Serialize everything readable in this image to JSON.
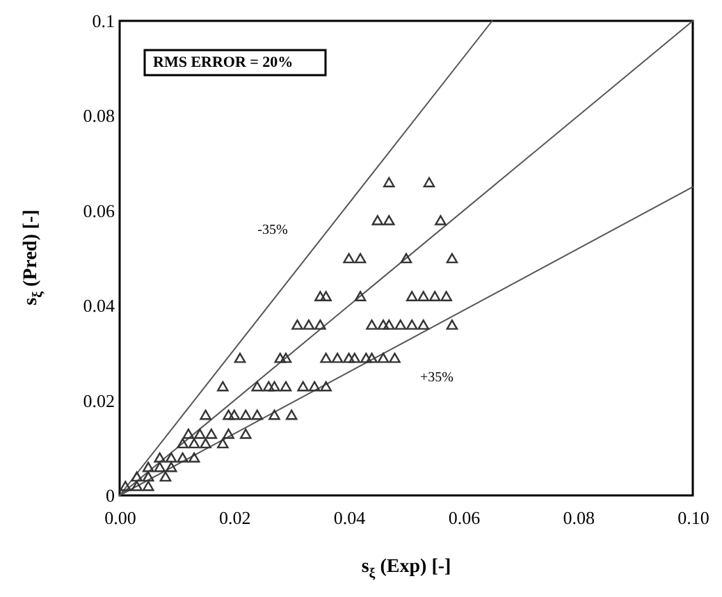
{
  "chart_data": {
    "type": "scatter",
    "xlabel": "s$_{ξ}$ (Exp) [-]",
    "ylabel": "s$_{ξ}$ (Pred) [-]",
    "annotations": [
      "RMS ERROR = 20%",
      "-35%",
      "+35%"
    ],
    "xlim": [
      0,
      0.1
    ],
    "ylim": [
      0,
      0.1
    ],
    "xticks": [
      {
        "value": 0,
        "label": "0.00"
      },
      {
        "value": 0.02,
        "label": "0.02"
      },
      {
        "value": 0.04,
        "label": "0.04"
      },
      {
        "value": 0.06,
        "label": "0.06"
      },
      {
        "value": 0.08,
        "label": "0.08"
      },
      {
        "value": 0.1,
        "label": "0.10"
      }
    ],
    "yticks": [
      0,
      0.02,
      0.04,
      0.06,
      0.08,
      0.1
    ],
    "grid": false,
    "series": [
      {
        "type": "line",
        "color": "#555555",
        "x": [
          0,
          0.1
        ],
        "values": [
          0,
          0.1
        ]
      },
      {
        "type": "line",
        "color": "#555555",
        "x": [
          0,
          0.065
        ],
        "values": [
          0,
          0.1
        ]
      },
      {
        "type": "line",
        "color": "#555555",
        "x": [
          0,
          0.1
        ],
        "values": [
          0,
          0.065
        ]
      },
      {
        "color": "#333333",
        "marker": "triangle",
        "x": [
          0.047,
          0.054,
          0.045,
          0.047,
          0.056,
          0.04,
          0.042,
          0.05,
          0.058,
          0.035,
          0.036,
          0.042,
          0.051,
          0.053,
          0.055,
          0.057,
          0.031,
          0.033,
          0.035,
          0.044,
          0.046,
          0.047,
          0.049,
          0.051,
          0.053,
          0.058,
          0.021,
          0.028,
          0.029,
          0.036,
          0.038,
          0.04,
          0.041,
          0.043,
          0.044,
          0.046,
          0.048,
          0.018,
          0.024,
          0.026,
          0.027,
          0.029,
          0.032,
          0.034,
          0.036,
          0.015,
          0.019,
          0.02,
          0.022,
          0.024,
          0.027,
          0.03,
          0.012,
          0.014,
          0.016,
          0.019,
          0.022,
          0.011,
          0.013,
          0.015,
          0.018,
          0.007,
          0.009,
          0.011,
          0.013,
          0.005,
          0.007,
          0.009,
          0.003,
          0.005,
          0.008,
          0.001,
          0.003,
          0.005
        ],
        "values": [
          0.066,
          0.066,
          0.058,
          0.058,
          0.058,
          0.05,
          0.05,
          0.05,
          0.05,
          0.042,
          0.042,
          0.042,
          0.042,
          0.042,
          0.042,
          0.042,
          0.036,
          0.036,
          0.036,
          0.036,
          0.036,
          0.036,
          0.036,
          0.036,
          0.036,
          0.036,
          0.029,
          0.029,
          0.029,
          0.029,
          0.029,
          0.029,
          0.029,
          0.029,
          0.029,
          0.029,
          0.029,
          0.023,
          0.023,
          0.023,
          0.023,
          0.023,
          0.023,
          0.023,
          0.023,
          0.017,
          0.017,
          0.017,
          0.017,
          0.017,
          0.017,
          0.017,
          0.013,
          0.013,
          0.013,
          0.013,
          0.013,
          0.011,
          0.011,
          0.011,
          0.011,
          0.008,
          0.008,
          0.008,
          0.008,
          0.006,
          0.006,
          0.006,
          0.004,
          0.004,
          0.004,
          0.002,
          0.002,
          0.002
        ]
      }
    ]
  }
}
